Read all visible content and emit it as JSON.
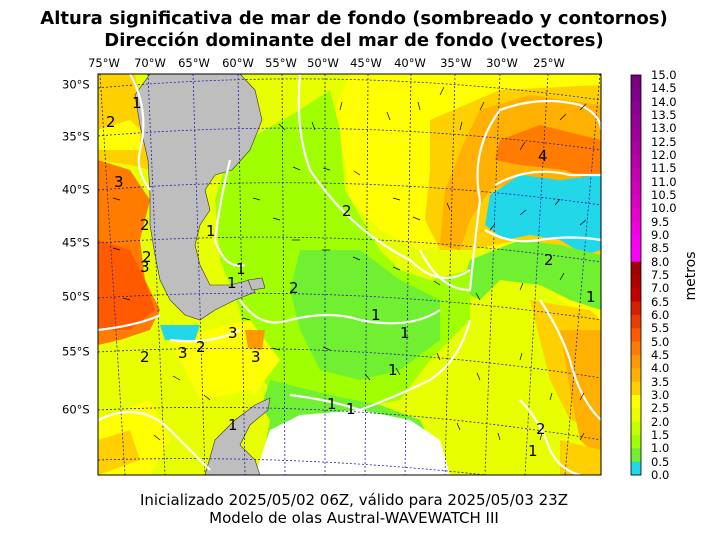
{
  "title_line1": "Altura significativa de mar de fondo (sombreado y contornos)",
  "title_line2": "Dirección dominante del mar de fondo (vectores)",
  "footer_line1": "Inicializado 2025/05/02 06Z, válido para 2025/05/03 23Z",
  "footer_line2": "Modelo de olas Austral-WAVEWATCH III",
  "lon_ticks": [
    "75°W",
    "70°W",
    "65°W",
    "60°W",
    "55°W",
    "50°W",
    "45°W",
    "40°W",
    "35°W",
    "30°W",
    "25°W"
  ],
  "lat_ticks": [
    "30°S",
    "35°S",
    "40°S",
    "45°S",
    "50°S",
    "55°S",
    "60°S"
  ],
  "colorbar": {
    "unit_label": "metros",
    "labels": [
      "15.0",
      "14.5",
      "14.0",
      "13.5",
      "13.0",
      "12.5",
      "12.0",
      "11.5",
      "11.0",
      "10.5",
      "10.0",
      "9.5",
      "9.0",
      "8.5",
      "8.0",
      "7.5",
      "7.0",
      "6.5",
      "6.0",
      "5.5",
      "5.0",
      "4.5",
      "4.0",
      "3.5",
      "3.0",
      "2.5",
      "2.0",
      "1.5",
      "1.0",
      "0.5",
      "0.0"
    ],
    "colors": [
      "#7a0080",
      "#80008a",
      "#8a0090",
      "#950096",
      "#a0009a",
      "#aa00a0",
      "#b800a8",
      "#c500b0",
      "#d000b8",
      "#dd00c4",
      "#e800d0",
      "#f000e0",
      "#f800f0",
      "#fd00ff",
      "#a00000",
      "#b00000",
      "#c40000",
      "#d82000",
      "#ea3c00",
      "#ff5a00",
      "#ff7c00",
      "#ff9800",
      "#ffb000",
      "#ffd000",
      "#ffff00",
      "#e8ff00",
      "#c8ff00",
      "#a0ff00",
      "#70f030",
      "#22d8e8"
    ]
  },
  "contour_labels": [
    "1",
    "2",
    "3",
    "2",
    "1",
    "1",
    "1",
    "2",
    "1",
    "1",
    "2",
    "3",
    "3",
    "2",
    "3",
    "1",
    "1",
    "1",
    "4",
    "2",
    "1",
    "2",
    "2",
    "1",
    "1",
    "2",
    "3"
  ],
  "colors": {
    "land": "#bebebe",
    "zero": "#22d8e8",
    "half": "#70f030",
    "one": "#a0ff00",
    "onehalf": "#c8ff00",
    "two": "#e8ff00",
    "twohalf": "#ffff00",
    "three": "#ffd000",
    "threehalf": "#ffb000",
    "four": "#ff9800",
    "fourhalf": "#ff7c00",
    "ice": "#ffffff"
  }
}
